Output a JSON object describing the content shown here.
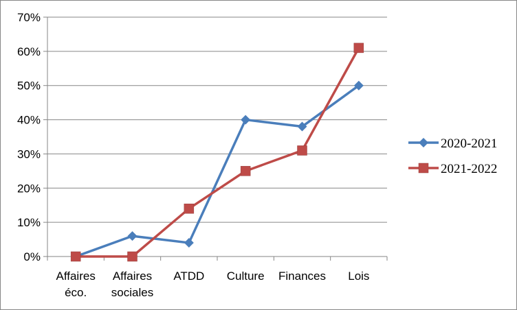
{
  "chart_data": {
    "type": "line",
    "categories": [
      [
        "Affaires",
        "éco."
      ],
      [
        "Affaires",
        "sociales"
      ],
      [
        "ATDD"
      ],
      [
        "Culture"
      ],
      [
        "Finances"
      ],
      [
        "Lois"
      ]
    ],
    "y_ticks": [
      "0%",
      "10%",
      "20%",
      "30%",
      "40%",
      "50%",
      "60%",
      "70%"
    ],
    "ylim": [
      0,
      70
    ],
    "grid": true,
    "legend_position": "right",
    "series": [
      {
        "name": "2020-2021",
        "color": "#4a7ebb",
        "marker": "diamond",
        "values": [
          0,
          6,
          4,
          40,
          38,
          50
        ]
      },
      {
        "name": "2021-2022",
        "color": "#be4b48",
        "marker": "square",
        "values": [
          0,
          0,
          14,
          25,
          31,
          61
        ]
      }
    ]
  }
}
